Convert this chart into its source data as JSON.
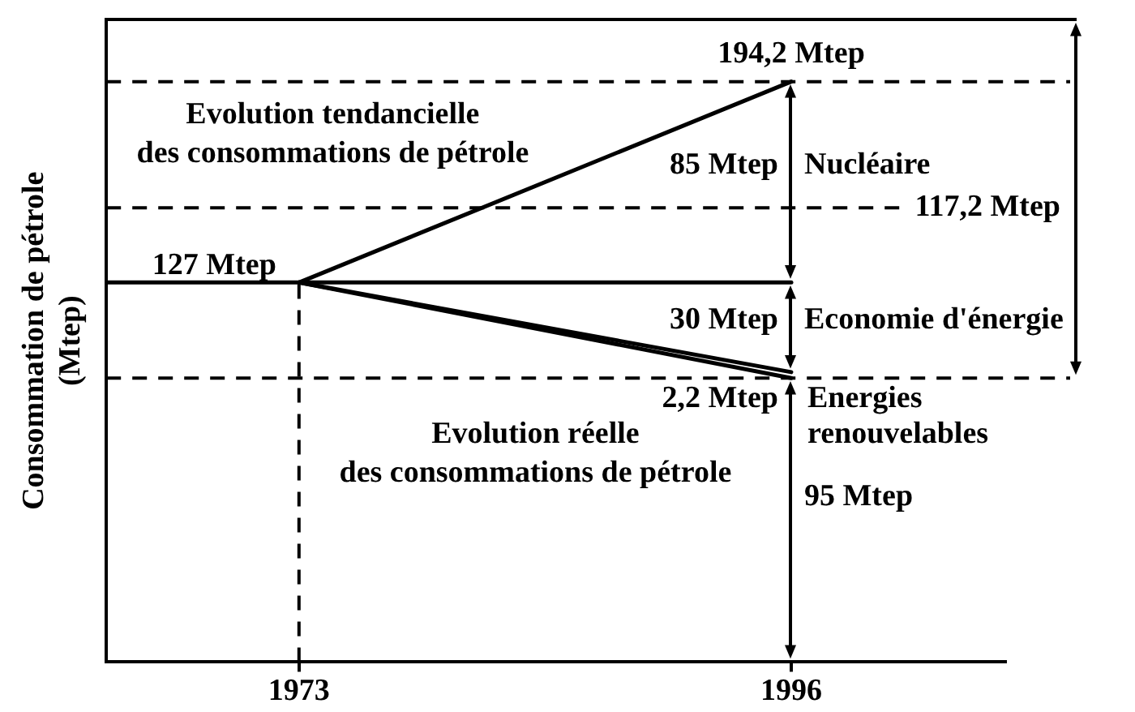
{
  "chart_data": {
    "type": "line",
    "ylabel": "Consommation de pétrole\n(Mtep)",
    "x": [
      1973,
      1996
    ],
    "xlim": [
      1964,
      2006
    ],
    "xticks": [
      1973,
      1996
    ],
    "ylim": [
      0,
      215
    ],
    "tick_labels": "x",
    "marker": "none",
    "series": [
      {
        "name": "Evolution tendancielle\ndes consommations de pétrole",
        "color": "#000000",
        "values": [
          127,
          194.2
        ],
        "value_labels": [
          "127 Mtep",
          "194,2 Mtep"
        ]
      },
      {
        "color": "#000000",
        "values": [
          127,
          97
        ]
      },
      {
        "name": "Evolution réelle\ndes consommations de pétrole",
        "color": "#000000",
        "values": [
          127,
          95
        ]
      },
      {
        "color": "#000000",
        "x": [
          1964,
          1996
        ],
        "values": [
          127,
          127
        ]
      }
    ],
    "ref_lines": [
      {
        "axis": "y",
        "value": 194.2,
        "line_style": "dashed"
      },
      {
        "axis": "y",
        "value": 152,
        "label": "117,2 Mtep",
        "line_style": "dashed"
      },
      {
        "axis": "y",
        "value": 95,
        "line_style": "dashed"
      },
      {
        "axis": "x",
        "value": 1973,
        "line_style": "dashed"
      }
    ],
    "annotations": [
      "85 Mtep",
      "Nucléaire",
      "30 Mtep",
      "Economie d'énergie",
      "2,2 Mtep",
      "Energies\nrenouvelables",
      "95 Mtep"
    ]
  }
}
